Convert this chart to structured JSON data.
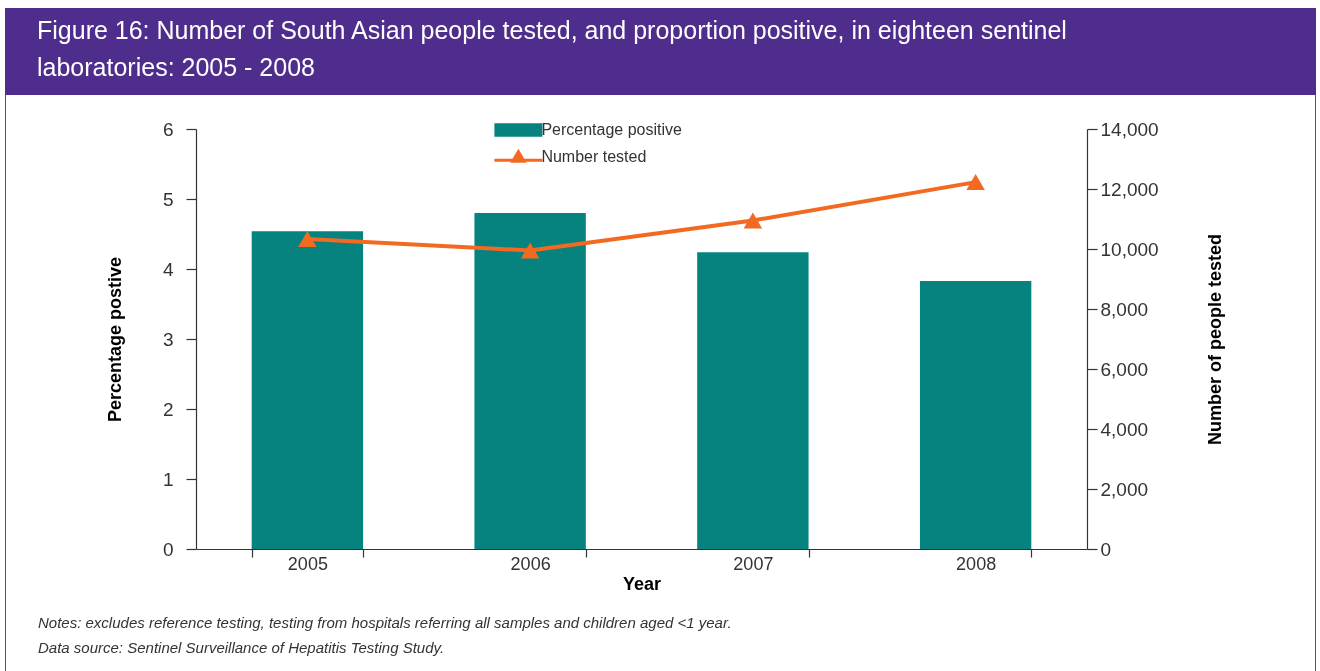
{
  "chart_data": {
    "type": "bar",
    "title": "Figure 16: Number of South Asian people tested, and proportion positive, in eighteen sentinel laboratories: 2005 - 2008",
    "categories": [
      "2005",
      "2006",
      "2007",
      "2008"
    ],
    "series": [
      {
        "name": "Percentage positive",
        "color": "#06827f",
        "values": [
          4.54,
          4.8,
          4.24,
          3.83
        ]
      },
      {
        "name": "Number tested",
        "type": "line",
        "axis": "y2",
        "color": "#f26a21",
        "values": [
          10330,
          9950,
          10950,
          12230
        ]
      }
    ],
    "xlabel": "Year",
    "ylabel": "Percentage postive",
    "y2label": "Number of people tested",
    "ylim": [
      0,
      6
    ],
    "yticks": [
      0,
      1,
      2,
      3,
      4,
      5,
      6
    ],
    "y2lim": [
      0,
      14000
    ],
    "y2ticks": [
      {
        "value": 0,
        "label": "0"
      },
      {
        "value": 2000,
        "label": "2,000"
      },
      {
        "value": 4000,
        "label": "4,000"
      },
      {
        "value": 6000,
        "label": "6,000"
      },
      {
        "value": 8000,
        "label": "8,000"
      },
      {
        "value": 10000,
        "label": "10,000"
      },
      {
        "value": 12000,
        "label": "12,000"
      },
      {
        "value": 14000,
        "label": "14,000"
      }
    ],
    "legend": "top",
    "marker": "triangle",
    "line_style": "solid",
    "annotations": [
      "Notes: excludes reference testing, testing from hospitals referring all samples and children aged <1 year.",
      "Data source: Sentinel Surveillance of Hepatitis Testing Study."
    ]
  }
}
